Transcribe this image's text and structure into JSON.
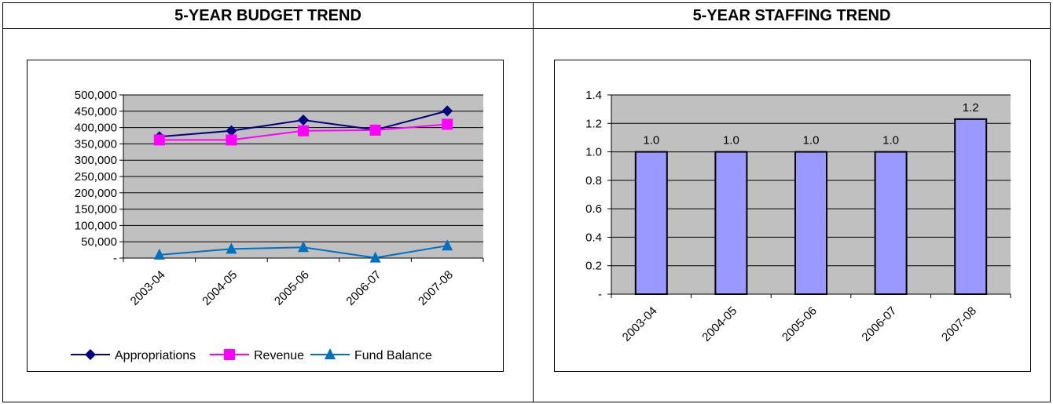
{
  "panels": {
    "budget": {
      "title": "5-YEAR BUDGET TREND"
    },
    "staffing": {
      "title": "5-YEAR STAFFING TREND"
    }
  },
  "colors": {
    "plot_bg": "#c0c0c0",
    "appropriations": "#000080",
    "revenue": "#ff00ff",
    "fund_balance": "#0070c0",
    "bar_fill": "#9999ff"
  },
  "chart_data": [
    {
      "type": "line",
      "title": "5-YEAR BUDGET TREND",
      "categories": [
        "2003-04",
        "2004-05",
        "2005-06",
        "2006-07",
        "2007-08"
      ],
      "series": [
        {
          "name": "Appropriations",
          "values": [
            372000,
            390000,
            423000,
            393000,
            451000
          ],
          "marker": "diamond"
        },
        {
          "name": "Revenue",
          "values": [
            362000,
            362000,
            390000,
            392000,
            410000
          ],
          "marker": "square"
        },
        {
          "name": "Fund Balance",
          "values": [
            10000,
            28000,
            33000,
            1000,
            38000
          ],
          "marker": "triangle"
        }
      ],
      "ylim": [
        0,
        500000
      ],
      "yticks": [
        0,
        50000,
        100000,
        150000,
        200000,
        250000,
        300000,
        350000,
        400000,
        450000,
        500000
      ],
      "ytick_labels": [
        "-",
        "50,000",
        "100,000",
        "150,000",
        "200,000",
        "250,000",
        "300,000",
        "350,000",
        "400,000",
        "450,000",
        "500,000"
      ],
      "grid": true,
      "legend": "bottom"
    },
    {
      "type": "bar",
      "title": "5-YEAR STAFFING TREND",
      "categories": [
        "2003-04",
        "2004-05",
        "2005-06",
        "2006-07",
        "2007-08"
      ],
      "values": [
        1.0,
        1.0,
        1.0,
        1.0,
        1.23
      ],
      "data_labels": [
        "1.0",
        "1.0",
        "1.0",
        "1.0",
        "1.2"
      ],
      "ylim": [
        0,
        1.4
      ],
      "yticks": [
        0,
        0.2,
        0.4,
        0.6,
        0.8,
        1.0,
        1.2,
        1.4
      ],
      "ytick_labels": [
        "-",
        "0.2",
        "0.4",
        "0.6",
        "0.8",
        "1.0",
        "1.2",
        "1.4"
      ],
      "grid": true
    }
  ]
}
